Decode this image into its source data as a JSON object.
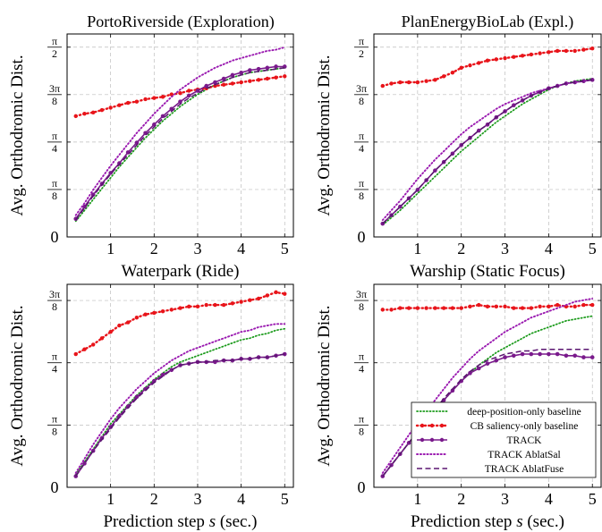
{
  "colors": {
    "deep": "#1a9a1a",
    "cb": "#e8141a",
    "track": "#7a1a8c",
    "ablat_sal": "#9a1ab0",
    "ablat_fuse": "#5a1570",
    "grid": "#bdbdbd"
  },
  "legend": {
    "placement": "bottom-right of lower-right panel",
    "entries": [
      {
        "key": "deep",
        "label": "deep-position-only baseline"
      },
      {
        "key": "cb",
        "label": "CB saliency-only baseline"
      },
      {
        "key": "track",
        "label": "TRACK"
      },
      {
        "key": "ablat_sal",
        "label": "TRACK AblatSal"
      },
      {
        "key": "ablat_fuse",
        "label": "TRACK AblatFuse"
      }
    ]
  },
  "chart_data": [
    {
      "type": "line",
      "title": "PortoRiverside (Exploration)",
      "xlabel": "Waterpark (Ride)",
      "ylabel": "Avg. Orthodromic Dist.",
      "xticks": [
        "1",
        "2",
        "3",
        "4",
        "5"
      ],
      "yticks": [
        {
          "label": "0",
          "value": 0
        },
        {
          "label": "π/8",
          "value": 0.3927
        },
        {
          "label": "π/4",
          "value": 0.7854
        },
        {
          "label": "3π/8",
          "value": 1.1781
        },
        {
          "label": "π/2",
          "value": 1.5708
        }
      ],
      "xlim": [
        0,
        5.2
      ],
      "ylim": [
        0,
        1.68
      ],
      "grid": true,
      "x": [
        0.2,
        0.4,
        0.6,
        0.8,
        1.0,
        1.2,
        1.4,
        1.6,
        1.8,
        2.0,
        2.2,
        2.4,
        2.6,
        2.8,
        3.0,
        3.2,
        3.4,
        3.6,
        3.8,
        4.0,
        4.2,
        4.4,
        4.6,
        4.8,
        5.0
      ],
      "series": [
        {
          "key": "deep",
          "values": [
            0.13,
            0.22,
            0.31,
            0.4,
            0.49,
            0.58,
            0.66,
            0.74,
            0.82,
            0.89,
            0.96,
            1.02,
            1.08,
            1.13,
            1.18,
            1.22,
            1.26,
            1.29,
            1.32,
            1.34,
            1.36,
            1.37,
            1.38,
            1.39,
            1.4
          ]
        },
        {
          "key": "cb",
          "values": [
            1.0,
            1.02,
            1.03,
            1.05,
            1.07,
            1.09,
            1.11,
            1.12,
            1.14,
            1.15,
            1.16,
            1.18,
            1.19,
            1.21,
            1.22,
            1.23,
            1.25,
            1.26,
            1.27,
            1.28,
            1.29,
            1.3,
            1.31,
            1.32,
            1.33
          ]
        },
        {
          "key": "track",
          "values": [
            0.15,
            0.25,
            0.35,
            0.44,
            0.53,
            0.61,
            0.7,
            0.78,
            0.86,
            0.93,
            1.0,
            1.06,
            1.12,
            1.17,
            1.21,
            1.25,
            1.28,
            1.31,
            1.34,
            1.36,
            1.38,
            1.39,
            1.4,
            1.41,
            1.41
          ]
        },
        {
          "key": "ablat_sal",
          "values": [
            0.18,
            0.28,
            0.39,
            0.49,
            0.59,
            0.68,
            0.77,
            0.86,
            0.94,
            1.02,
            1.09,
            1.16,
            1.22,
            1.27,
            1.32,
            1.36,
            1.4,
            1.43,
            1.46,
            1.48,
            1.5,
            1.52,
            1.54,
            1.55,
            1.57
          ]
        },
        {
          "key": "ablat_fuse",
          "values": [
            0.14,
            0.24,
            0.34,
            0.43,
            0.52,
            0.6,
            0.68,
            0.76,
            0.84,
            0.91,
            0.98,
            1.04,
            1.1,
            1.15,
            1.19,
            1.23,
            1.26,
            1.29,
            1.32,
            1.34,
            1.36,
            1.37,
            1.38,
            1.39,
            1.4
          ]
        }
      ]
    },
    {
      "type": "line",
      "title": "PlanEnergyBioLab (Expl.)",
      "xlabel": "Warship (Static Focus)",
      "ylabel": "Avg. Orthodromic Dist.",
      "xticks": [
        "1",
        "2",
        "3",
        "4",
        "5"
      ],
      "yticks": [
        {
          "label": "0",
          "value": 0
        },
        {
          "label": "π/8",
          "value": 0.3927
        },
        {
          "label": "π/4",
          "value": 0.7854
        },
        {
          "label": "3π/8",
          "value": 1.1781
        },
        {
          "label": "π/2",
          "value": 1.5708
        }
      ],
      "xlim": [
        0,
        5.2
      ],
      "ylim": [
        0,
        1.68
      ],
      "grid": true,
      "x": [
        0.2,
        0.4,
        0.6,
        0.8,
        1.0,
        1.2,
        1.4,
        1.6,
        1.8,
        2.0,
        2.2,
        2.4,
        2.6,
        2.8,
        3.0,
        3.2,
        3.4,
        3.6,
        3.8,
        4.0,
        4.2,
        4.4,
        4.6,
        4.8,
        5.0
      ],
      "series": [
        {
          "key": "deep",
          "values": [
            0.1,
            0.16,
            0.22,
            0.29,
            0.36,
            0.43,
            0.5,
            0.57,
            0.64,
            0.71,
            0.77,
            0.83,
            0.89,
            0.95,
            1.0,
            1.05,
            1.1,
            1.14,
            1.18,
            1.22,
            1.25,
            1.27,
            1.29,
            1.3,
            1.31
          ]
        },
        {
          "key": "cb",
          "values": [
            1.25,
            1.27,
            1.28,
            1.28,
            1.28,
            1.29,
            1.3,
            1.33,
            1.36,
            1.4,
            1.42,
            1.44,
            1.46,
            1.47,
            1.48,
            1.49,
            1.5,
            1.51,
            1.52,
            1.53,
            1.54,
            1.54,
            1.54,
            1.55,
            1.56
          ]
        },
        {
          "key": "track",
          "values": [
            0.11,
            0.18,
            0.25,
            0.32,
            0.39,
            0.47,
            0.55,
            0.62,
            0.69,
            0.76,
            0.82,
            0.88,
            0.93,
            0.99,
            1.04,
            1.09,
            1.13,
            1.17,
            1.2,
            1.23,
            1.25,
            1.27,
            1.28,
            1.29,
            1.3
          ]
        },
        {
          "key": "ablat_sal",
          "values": [
            0.14,
            0.22,
            0.3,
            0.39,
            0.48,
            0.56,
            0.64,
            0.71,
            0.78,
            0.85,
            0.91,
            0.96,
            1.01,
            1.06,
            1.1,
            1.13,
            1.16,
            1.19,
            1.21,
            1.23,
            1.25,
            1.27,
            1.28,
            1.29,
            1.3
          ]
        },
        {
          "key": "ablat_fuse",
          "values": [
            0.11,
            0.18,
            0.25,
            0.32,
            0.39,
            0.47,
            0.55,
            0.62,
            0.69,
            0.76,
            0.82,
            0.88,
            0.93,
            0.99,
            1.04,
            1.09,
            1.13,
            1.17,
            1.2,
            1.23,
            1.25,
            1.27,
            1.28,
            1.29,
            1.3
          ]
        }
      ]
    },
    {
      "type": "line",
      "title": "",
      "xlabel": "Prediction step s (sec.)",
      "ylabel": "Avg. Orthodromic Dist.",
      "xticks": [
        "1",
        "2",
        "3",
        "4",
        "5"
      ],
      "yticks": [
        {
          "label": "0",
          "value": 0
        },
        {
          "label": "π/8",
          "value": 0.3927
        },
        {
          "label": "π/4",
          "value": 0.7854
        },
        {
          "label": "3π/8",
          "value": 1.1781
        }
      ],
      "xlim": [
        0,
        5.2
      ],
      "ylim": [
        0,
        1.28
      ],
      "grid": true,
      "x": [
        0.2,
        0.4,
        0.6,
        0.8,
        1.0,
        1.2,
        1.4,
        1.6,
        1.8,
        2.0,
        2.2,
        2.4,
        2.6,
        2.8,
        3.0,
        3.2,
        3.4,
        3.6,
        3.8,
        4.0,
        4.2,
        4.4,
        4.6,
        4.8,
        5.0
      ],
      "series": [
        {
          "key": "deep",
          "values": [
            0.08,
            0.16,
            0.24,
            0.32,
            0.4,
            0.46,
            0.52,
            0.58,
            0.63,
            0.68,
            0.72,
            0.76,
            0.79,
            0.81,
            0.83,
            0.85,
            0.87,
            0.89,
            0.91,
            0.93,
            0.94,
            0.96,
            0.97,
            0.99,
            1.0
          ]
        },
        {
          "key": "cb",
          "values": [
            0.84,
            0.87,
            0.9,
            0.94,
            0.98,
            1.02,
            1.04,
            1.07,
            1.09,
            1.1,
            1.11,
            1.12,
            1.13,
            1.14,
            1.14,
            1.15,
            1.15,
            1.15,
            1.16,
            1.17,
            1.18,
            1.19,
            1.21,
            1.23,
            1.22
          ]
        },
        {
          "key": "track",
          "values": [
            0.07,
            0.15,
            0.23,
            0.31,
            0.38,
            0.45,
            0.51,
            0.57,
            0.62,
            0.67,
            0.71,
            0.74,
            0.77,
            0.78,
            0.79,
            0.79,
            0.79,
            0.8,
            0.8,
            0.81,
            0.81,
            0.82,
            0.82,
            0.83,
            0.84
          ]
        },
        {
          "key": "ablat_sal",
          "values": [
            0.09,
            0.18,
            0.27,
            0.35,
            0.43,
            0.5,
            0.56,
            0.62,
            0.67,
            0.72,
            0.76,
            0.8,
            0.83,
            0.86,
            0.88,
            0.9,
            0.92,
            0.94,
            0.96,
            0.98,
            0.99,
            1.01,
            1.02,
            1.03,
            1.03
          ]
        },
        {
          "key": "ablat_fuse",
          "values": [
            0.07,
            0.15,
            0.23,
            0.3,
            0.37,
            0.44,
            0.5,
            0.56,
            0.61,
            0.66,
            0.7,
            0.74,
            0.77,
            0.78,
            0.79,
            0.79,
            0.8,
            0.8,
            0.8,
            0.81,
            0.81,
            0.82,
            0.82,
            0.83,
            0.84
          ]
        }
      ]
    },
    {
      "type": "line",
      "title": "",
      "xlabel": "Prediction step s (sec.)",
      "ylabel": "Avg. Orthodromic Dist.",
      "xticks": [
        "1",
        "2",
        "3",
        "4",
        "5"
      ],
      "yticks": [
        {
          "label": "0",
          "value": 0
        },
        {
          "label": "π/8",
          "value": 0.3927
        },
        {
          "label": "π/4",
          "value": 0.7854
        },
        {
          "label": "3π/8",
          "value": 1.1781
        }
      ],
      "xlim": [
        0,
        5.2
      ],
      "ylim": [
        0,
        1.28
      ],
      "grid": true,
      "x": [
        0.2,
        0.4,
        0.6,
        0.8,
        1.0,
        1.2,
        1.4,
        1.6,
        1.8,
        2.0,
        2.2,
        2.4,
        2.6,
        2.8,
        3.0,
        3.2,
        3.4,
        3.6,
        3.8,
        4.0,
        4.2,
        4.4,
        4.6,
        4.8,
        5.0
      ],
      "series": [
        {
          "key": "deep",
          "values": [
            0.07,
            0.14,
            0.21,
            0.28,
            0.35,
            0.42,
            0.48,
            0.55,
            0.61,
            0.67,
            0.72,
            0.77,
            0.81,
            0.85,
            0.88,
            0.91,
            0.94,
            0.97,
            0.99,
            1.01,
            1.03,
            1.05,
            1.06,
            1.07,
            1.08
          ]
        },
        {
          "key": "cb",
          "values": [
            1.12,
            1.12,
            1.13,
            1.13,
            1.13,
            1.13,
            1.13,
            1.13,
            1.13,
            1.13,
            1.14,
            1.15,
            1.14,
            1.14,
            1.14,
            1.13,
            1.13,
            1.13,
            1.14,
            1.14,
            1.15,
            1.14,
            1.14,
            1.15,
            1.15
          ]
        },
        {
          "key": "track",
          "values": [
            0.07,
            0.14,
            0.21,
            0.28,
            0.35,
            0.42,
            0.48,
            0.55,
            0.61,
            0.67,
            0.72,
            0.75,
            0.78,
            0.8,
            0.82,
            0.83,
            0.84,
            0.84,
            0.84,
            0.84,
            0.84,
            0.83,
            0.83,
            0.82,
            0.82
          ]
        },
        {
          "key": "ablat_sal",
          "values": [
            0.09,
            0.17,
            0.25,
            0.33,
            0.41,
            0.48,
            0.55,
            0.62,
            0.69,
            0.75,
            0.81,
            0.86,
            0.9,
            0.94,
            0.98,
            1.01,
            1.04,
            1.07,
            1.09,
            1.11,
            1.13,
            1.15,
            1.17,
            1.18,
            1.19
          ]
        },
        {
          "key": "ablat_fuse",
          "values": [
            0.07,
            0.14,
            0.21,
            0.28,
            0.35,
            0.42,
            0.49,
            0.56,
            0.62,
            0.68,
            0.73,
            0.77,
            0.8,
            0.82,
            0.84,
            0.85,
            0.86,
            0.86,
            0.87,
            0.87,
            0.87,
            0.87,
            0.87,
            0.87,
            0.87
          ]
        }
      ]
    }
  ]
}
